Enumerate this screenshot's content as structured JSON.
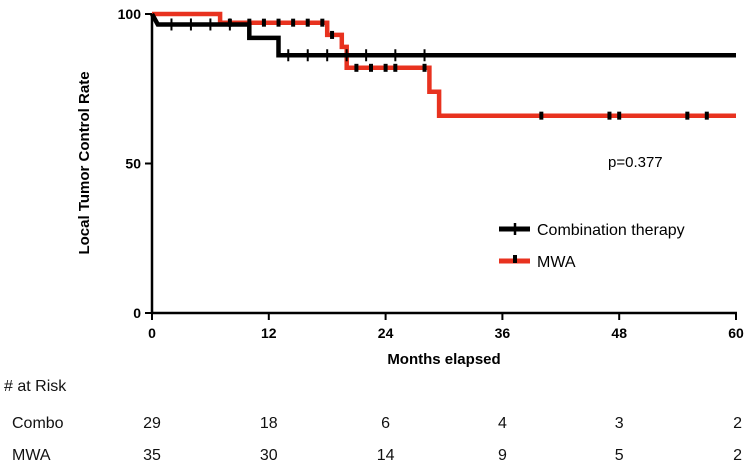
{
  "chart_data": {
    "type": "line",
    "subtype": "kaplan-meier",
    "title": "",
    "xlabel": "Months elapsed",
    "ylabel": "Local Tumor Control Rate",
    "xlim": [
      0,
      60
    ],
    "ylim": [
      0,
      100
    ],
    "xticks": [
      0,
      12,
      24,
      36,
      48,
      60
    ],
    "yticks": [
      0,
      50,
      100
    ],
    "legend_position": "center-right",
    "annotation": "p=0.377",
    "series": [
      {
        "name": "Combination therapy",
        "color": "#000000",
        "steps": [
          [
            0,
            100
          ],
          [
            0.6,
            96.5
          ],
          [
            10,
            96.5
          ],
          [
            10,
            92
          ],
          [
            13,
            92
          ],
          [
            13,
            86.2
          ],
          [
            60,
            86.2
          ]
        ],
        "censored": [
          [
            2,
            96.5
          ],
          [
            4,
            96.5
          ],
          [
            6,
            96.5
          ],
          [
            8,
            96.5
          ],
          [
            14,
            86.2
          ],
          [
            16,
            86.2
          ],
          [
            18,
            86.2
          ],
          [
            20,
            86.2
          ],
          [
            22,
            86.2
          ],
          [
            25,
            86.2
          ],
          [
            28,
            86.2
          ]
        ]
      },
      {
        "name": "MWA",
        "color": "#e8321f",
        "steps": [
          [
            0,
            100
          ],
          [
            7,
            100
          ],
          [
            7,
            97.1
          ],
          [
            18,
            97.1
          ],
          [
            18,
            93
          ],
          [
            19.5,
            93
          ],
          [
            19.5,
            89
          ],
          [
            20,
            89
          ],
          [
            20,
            82
          ],
          [
            28.5,
            82
          ],
          [
            28.5,
            74
          ],
          [
            29.5,
            74
          ],
          [
            29.5,
            66
          ],
          [
            60,
            66
          ]
        ],
        "censored": [
          [
            8,
            97.1
          ],
          [
            10,
            97.1
          ],
          [
            11.5,
            97.1
          ],
          [
            13,
            97.1
          ],
          [
            14.5,
            97.1
          ],
          [
            16,
            97.1
          ],
          [
            17.5,
            97.1
          ],
          [
            18.5,
            93
          ],
          [
            21,
            82
          ],
          [
            22.5,
            82
          ],
          [
            24,
            82
          ],
          [
            25,
            82
          ],
          [
            28,
            82
          ],
          [
            40,
            66
          ],
          [
            47,
            66
          ],
          [
            48,
            66
          ],
          [
            55,
            66
          ],
          [
            57,
            66
          ]
        ]
      }
    ]
  },
  "risk_table": {
    "title": "# at Risk",
    "rows": [
      {
        "label": "Combo",
        "values": [
          "29",
          "18",
          "6",
          "4",
          "3",
          "2"
        ]
      },
      {
        "label": "MWA",
        "values": [
          "35",
          "30",
          "14",
          "9",
          "5",
          "2"
        ]
      }
    ]
  }
}
